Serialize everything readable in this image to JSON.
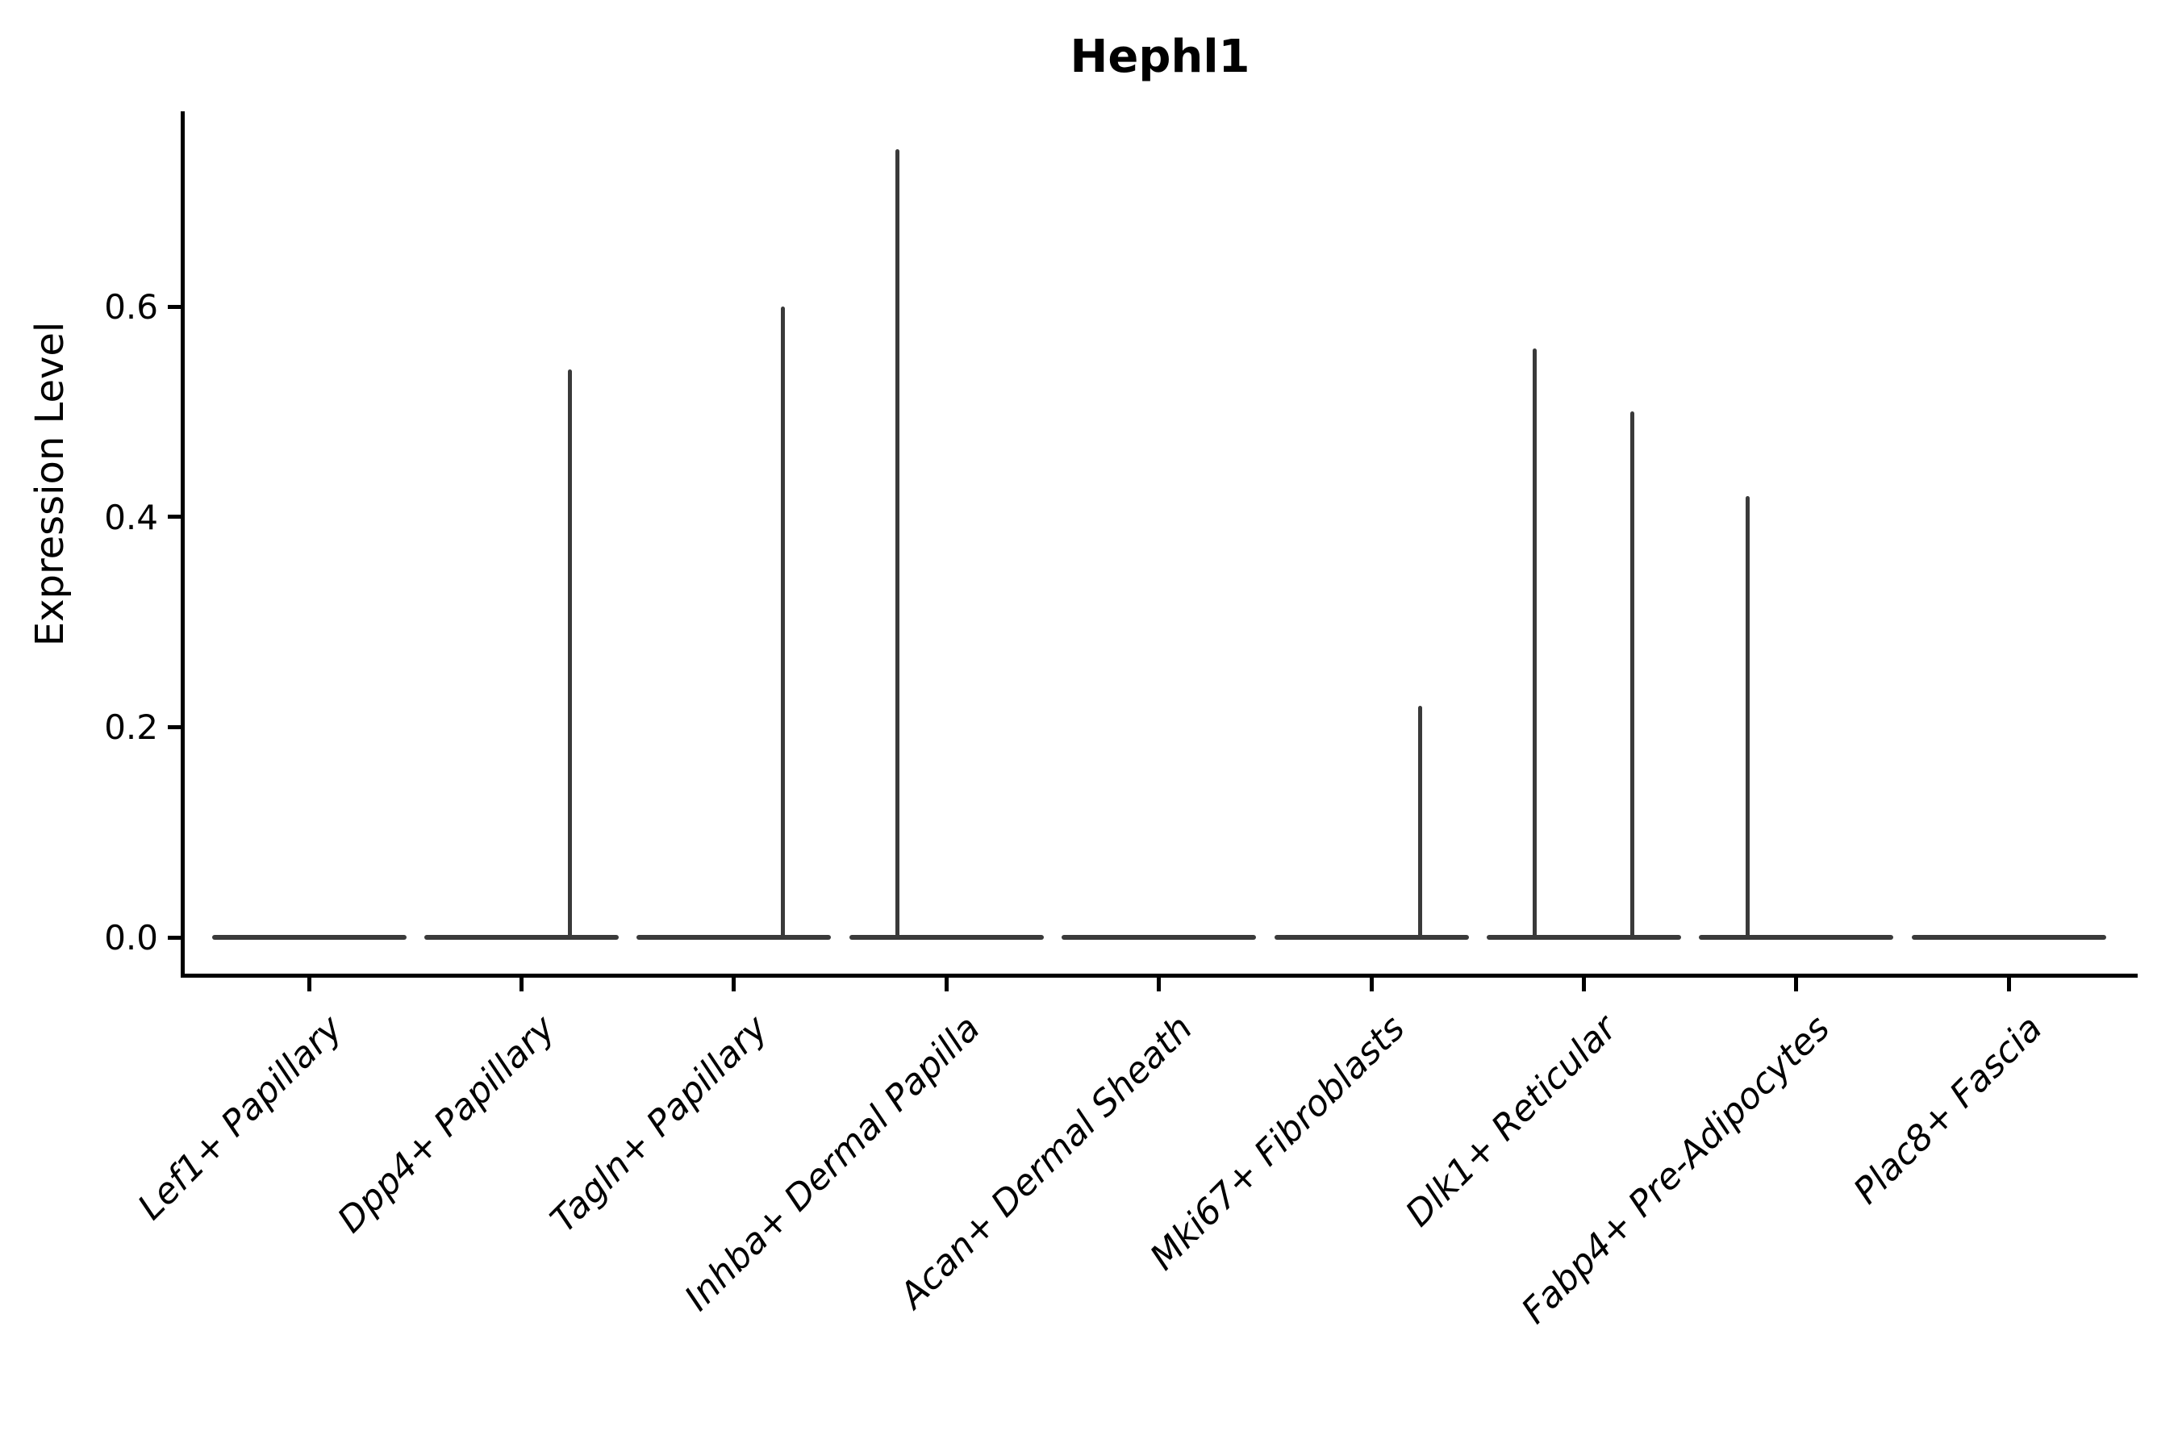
{
  "figure": {
    "title": "Hephl1"
  },
  "axes": {
    "ylabel": "Expression Level",
    "y_tick_labels": [
      "0.0",
      "0.2",
      "0.4",
      "0.6"
    ]
  },
  "colors": {
    "violin": "#3a3a3a",
    "axis": "#000000",
    "text": "#000000",
    "background": "#ffffff"
  },
  "chart_data": {
    "type": "violin",
    "title": "Hephl1",
    "xlabel": "",
    "ylabel": "Expression Level",
    "ylim": [
      0,
      0.78
    ],
    "y_ticks": [
      0.0,
      0.2,
      0.4,
      0.6
    ],
    "grid": false,
    "legend": false,
    "categories": [
      "Lef1+ Papillary",
      "Dpp4+ Papillary",
      "Tagln+ Papillary",
      "Inhba+ Dermal Papilla",
      "Acan+ Dermal Sheath",
      "Mki67+ Fibroblasts",
      "Dlk1+ Reticular",
      "Fabp4+ Pre-Adipocytes",
      "Plac8+ Fascia"
    ],
    "violins": [
      {
        "category": "Lef1+ Papillary",
        "bulk_value": 0.0,
        "spikes": []
      },
      {
        "category": "Dpp4+ Papillary",
        "bulk_value": 0.0,
        "spikes": [
          {
            "side": "right",
            "max": 0.54
          }
        ]
      },
      {
        "category": "Tagln+ Papillary",
        "bulk_value": 0.0,
        "spikes": [
          {
            "side": "right",
            "max": 0.6
          }
        ]
      },
      {
        "category": "Inhba+ Dermal Papilla",
        "bulk_value": 0.0,
        "spikes": [
          {
            "side": "left",
            "max": 0.75
          }
        ]
      },
      {
        "category": "Acan+ Dermal Sheath",
        "bulk_value": 0.0,
        "spikes": []
      },
      {
        "category": "Mki67+ Fibroblasts",
        "bulk_value": 0.0,
        "spikes": [
          {
            "side": "right",
            "max": 0.22
          }
        ]
      },
      {
        "category": "Dlk1+ Reticular",
        "bulk_value": 0.0,
        "spikes": [
          {
            "side": "left",
            "max": 0.56
          },
          {
            "side": "right",
            "max": 0.5
          }
        ]
      },
      {
        "category": "Fabp4+ Pre-Adipocytes",
        "bulk_value": 0.0,
        "spikes": [
          {
            "side": "left",
            "max": 0.42
          }
        ]
      },
      {
        "category": "Plac8+ Fascia",
        "bulk_value": 0.0,
        "spikes": []
      }
    ],
    "description": "Violin plot of Hephl1 expression; all distributions are concentrated at 0 with thin density tails reaching the listed maxima."
  }
}
